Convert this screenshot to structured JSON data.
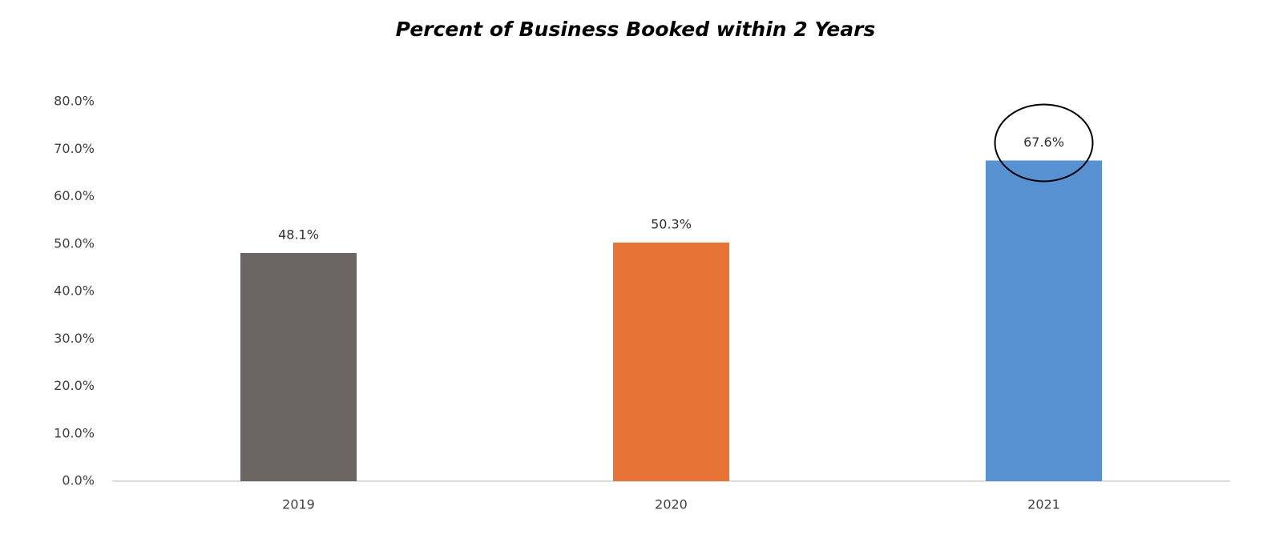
{
  "chart_data": {
    "type": "bar",
    "title": "Percent of Business Booked within 2 Years",
    "categories": [
      "2019",
      "2020",
      "2021"
    ],
    "values": [
      48.1,
      50.3,
      67.6
    ],
    "value_labels": [
      "48.1%",
      "50.3%",
      "67.6%"
    ],
    "colors": [
      "#6b6564",
      "#e97236",
      "#5891d1"
    ],
    "ylim": [
      0,
      80
    ],
    "yticks": [
      {
        "value": 0,
        "label": "0.0%"
      },
      {
        "value": 10,
        "label": "10.0%"
      },
      {
        "value": 20,
        "label": "20.0%"
      },
      {
        "value": 30,
        "label": "30.0%"
      },
      {
        "value": 40,
        "label": "40.0%"
      },
      {
        "value": 50,
        "label": "50.0%"
      },
      {
        "value": 60,
        "label": "60.0%"
      },
      {
        "value": 70,
        "label": "70.0%"
      },
      {
        "value": 80,
        "label": "80.0%"
      }
    ],
    "grid": false
  }
}
